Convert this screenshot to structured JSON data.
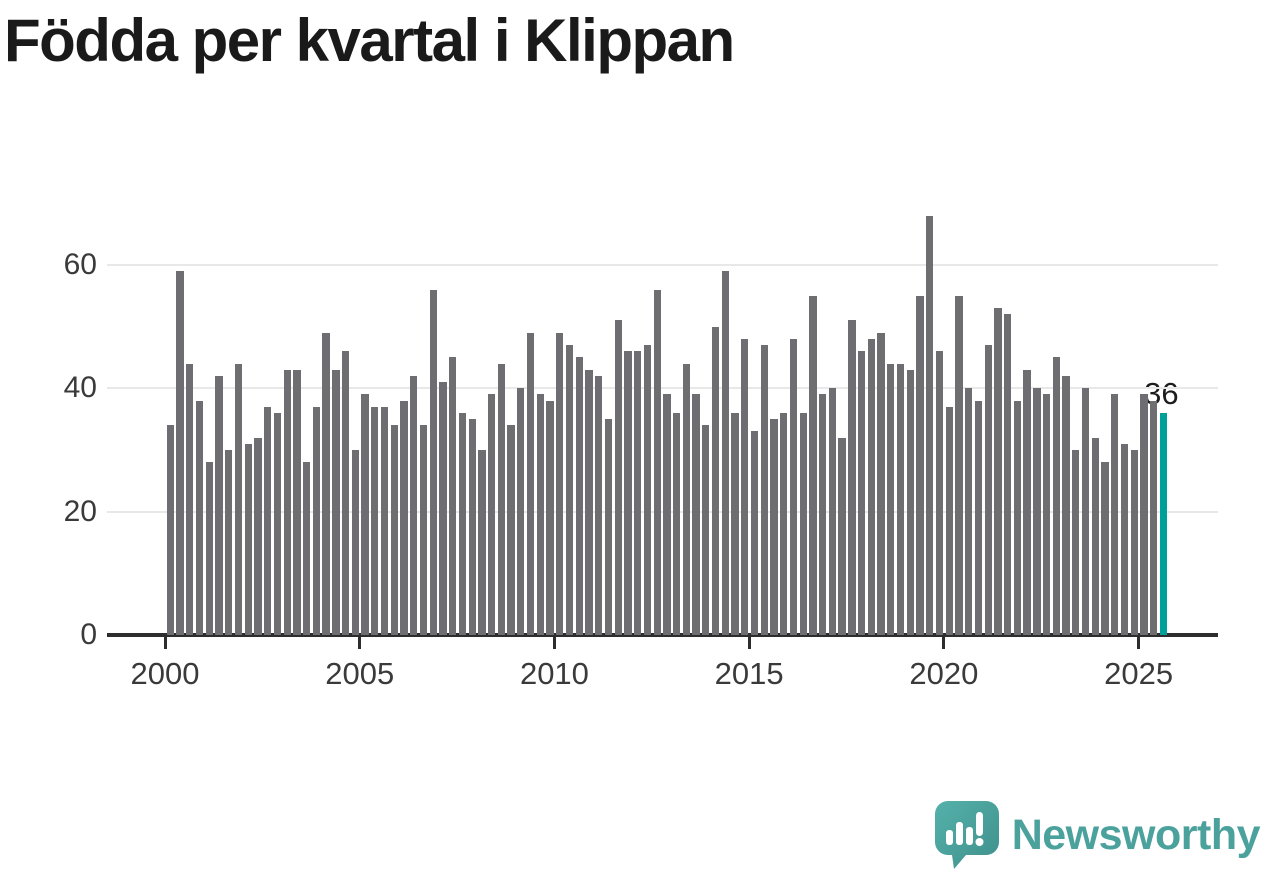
{
  "title": "Födda per kvartal i Klippan",
  "annotation": {
    "label": "36"
  },
  "branding": {
    "wordmark": "Newsworthy"
  },
  "colors": {
    "bar": "#6d6d72",
    "highlight": "#00a09a",
    "grid": "#e8e8e8",
    "axis": "#2d2d2d",
    "tick_label": "#3a3a3a",
    "title_text": "#1a1a1a",
    "brand_teal": "#4ba19c"
  },
  "chart_data": {
    "type": "bar",
    "title": "Födda per kvartal i Klippan",
    "x_start_quarter": "2000Q1",
    "x_end_quarter": "2025Q3",
    "values": [
      34,
      59,
      44,
      38,
      28,
      42,
      30,
      44,
      31,
      32,
      37,
      36,
      43,
      43,
      28,
      37,
      49,
      43,
      46,
      30,
      39,
      37,
      37,
      34,
      38,
      42,
      34,
      56,
      41,
      45,
      36,
      35,
      30,
      39,
      44,
      34,
      40,
      49,
      39,
      38,
      49,
      47,
      45,
      43,
      42,
      35,
      51,
      46,
      46,
      47,
      56,
      39,
      36,
      44,
      39,
      34,
      50,
      59,
      36,
      48,
      33,
      47,
      35,
      36,
      48,
      36,
      55,
      39,
      40,
      32,
      51,
      46,
      48,
      49,
      44,
      44,
      43,
      55,
      68,
      46,
      37,
      55,
      40,
      38,
      47,
      53,
      52,
      38,
      43,
      40,
      39,
      45,
      42,
      30,
      40,
      32,
      28,
      39,
      31,
      30,
      39,
      38,
      36
    ],
    "highlight_index": 102,
    "highlight_value": 36,
    "x_tick_labels": [
      "2000",
      "2005",
      "2010",
      "2015",
      "2020",
      "2025"
    ],
    "x_tick_years": [
      2000,
      2005,
      2010,
      2015,
      2020,
      2025
    ],
    "y_ticks": [
      0,
      20,
      40,
      60
    ],
    "ylim": [
      0,
      70
    ],
    "grid": true,
    "legend": "none"
  }
}
